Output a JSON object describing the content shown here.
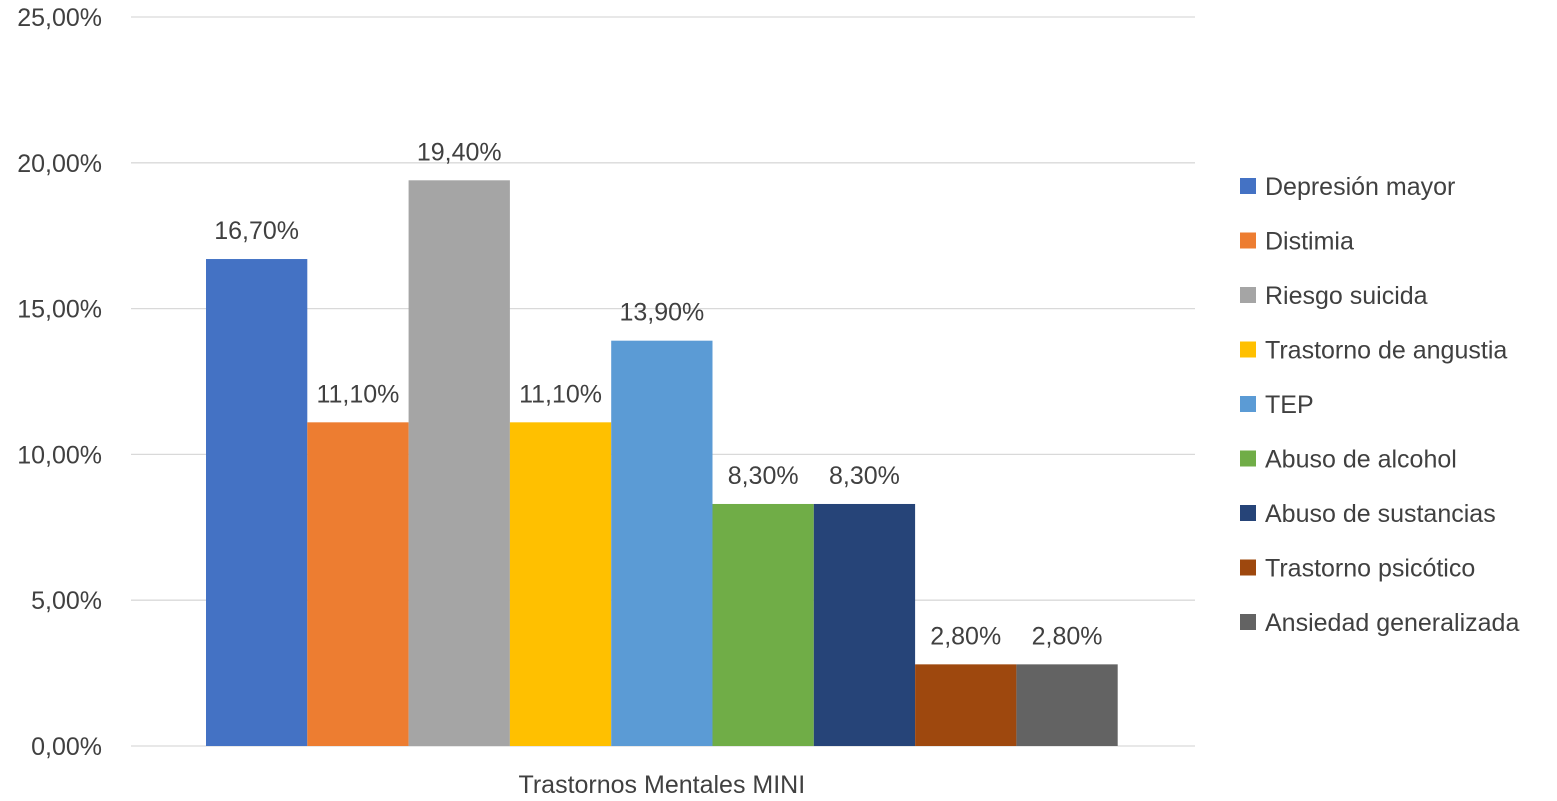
{
  "chart_data": {
    "type": "bar",
    "categories": [
      "Trastornos Mentales MINI"
    ],
    "series": [
      {
        "name": "Depresión mayor",
        "values": [
          16.7
        ],
        "label": "16,70%",
        "color": "#4472c4"
      },
      {
        "name": "Distimia",
        "values": [
          11.1
        ],
        "label": "11,10%",
        "color": "#ed7d31"
      },
      {
        "name": "Riesgo suicida",
        "values": [
          19.4
        ],
        "label": "19,40%",
        "color": "#a5a5a5"
      },
      {
        "name": "Trastorno de angustia",
        "values": [
          11.1
        ],
        "label": "11,10%",
        "color": "#ffc000"
      },
      {
        "name": "TEP",
        "values": [
          13.9
        ],
        "label": "13,90%",
        "color": "#5b9bd5"
      },
      {
        "name": "Abuso de alcohol",
        "values": [
          8.3
        ],
        "label": "8,30%",
        "color": "#70ad47"
      },
      {
        "name": "Abuso de sustancias",
        "values": [
          8.3
        ],
        "label": "8,30%",
        "color": "#264478"
      },
      {
        "name": "Trastorno psicótico",
        "values": [
          2.8
        ],
        "label": "2,80%",
        "color": "#9e480e"
      },
      {
        "name": "Ansiedad generalizada",
        "values": [
          2.8
        ],
        "label": "2,80%",
        "color": "#636363"
      }
    ],
    "y_ticks": [
      {
        "value": 0,
        "label": "0,00%"
      },
      {
        "value": 5,
        "label": "5,00%"
      },
      {
        "value": 10,
        "label": "10,00%"
      },
      {
        "value": 15,
        "label": "15,00%"
      },
      {
        "value": 20,
        "label": "20,00%"
      },
      {
        "value": 25,
        "label": "25,00%"
      }
    ],
    "ylim": [
      0,
      25
    ],
    "title": "",
    "xlabel": "",
    "ylabel": "",
    "grid": true,
    "legend_position": "right"
  }
}
